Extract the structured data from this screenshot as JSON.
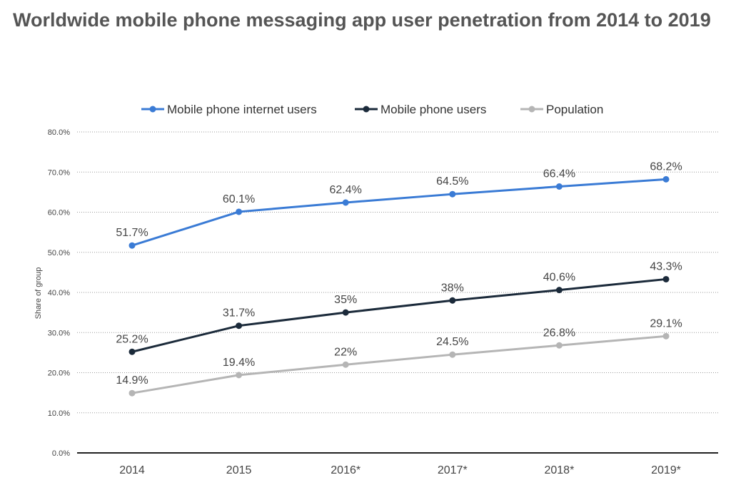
{
  "chart_data": {
    "type": "line",
    "title": "Worldwide mobile phone messaging app user penetration from 2014 to 2019",
    "ylabel": "Share of group",
    "xlabel": "",
    "categories": [
      "2014",
      "2015",
      "2016*",
      "2017*",
      "2018*",
      "2019*"
    ],
    "ylim": [
      0,
      80
    ],
    "yticks": [
      "0.0%",
      "10.0%",
      "20.0%",
      "30.0%",
      "40.0%",
      "50.0%",
      "60.0%",
      "70.0%",
      "80.0%"
    ],
    "grid": true,
    "legend_position": "top",
    "series": [
      {
        "name": "Mobile phone internet users",
        "color": "#3a7bd5",
        "values": [
          51.7,
          60.1,
          62.4,
          64.5,
          66.4,
          68.2
        ],
        "labels": [
          "51.7%",
          "60.1%",
          "62.4%",
          "64.5%",
          "66.4%",
          "68.2%"
        ]
      },
      {
        "name": "Mobile phone users",
        "color": "#1b2a3a",
        "values": [
          25.2,
          31.7,
          35,
          38,
          40.6,
          43.3
        ],
        "labels": [
          "25.2%",
          "31.7%",
          "35%",
          "38%",
          "40.6%",
          "43.3%"
        ]
      },
      {
        "name": "Population",
        "color": "#b5b5b5",
        "values": [
          14.9,
          19.4,
          22,
          24.5,
          26.8,
          29.1
        ],
        "labels": [
          "14.9%",
          "19.4%",
          "22%",
          "24.5%",
          "26.8%",
          "29.1%"
        ]
      }
    ]
  }
}
